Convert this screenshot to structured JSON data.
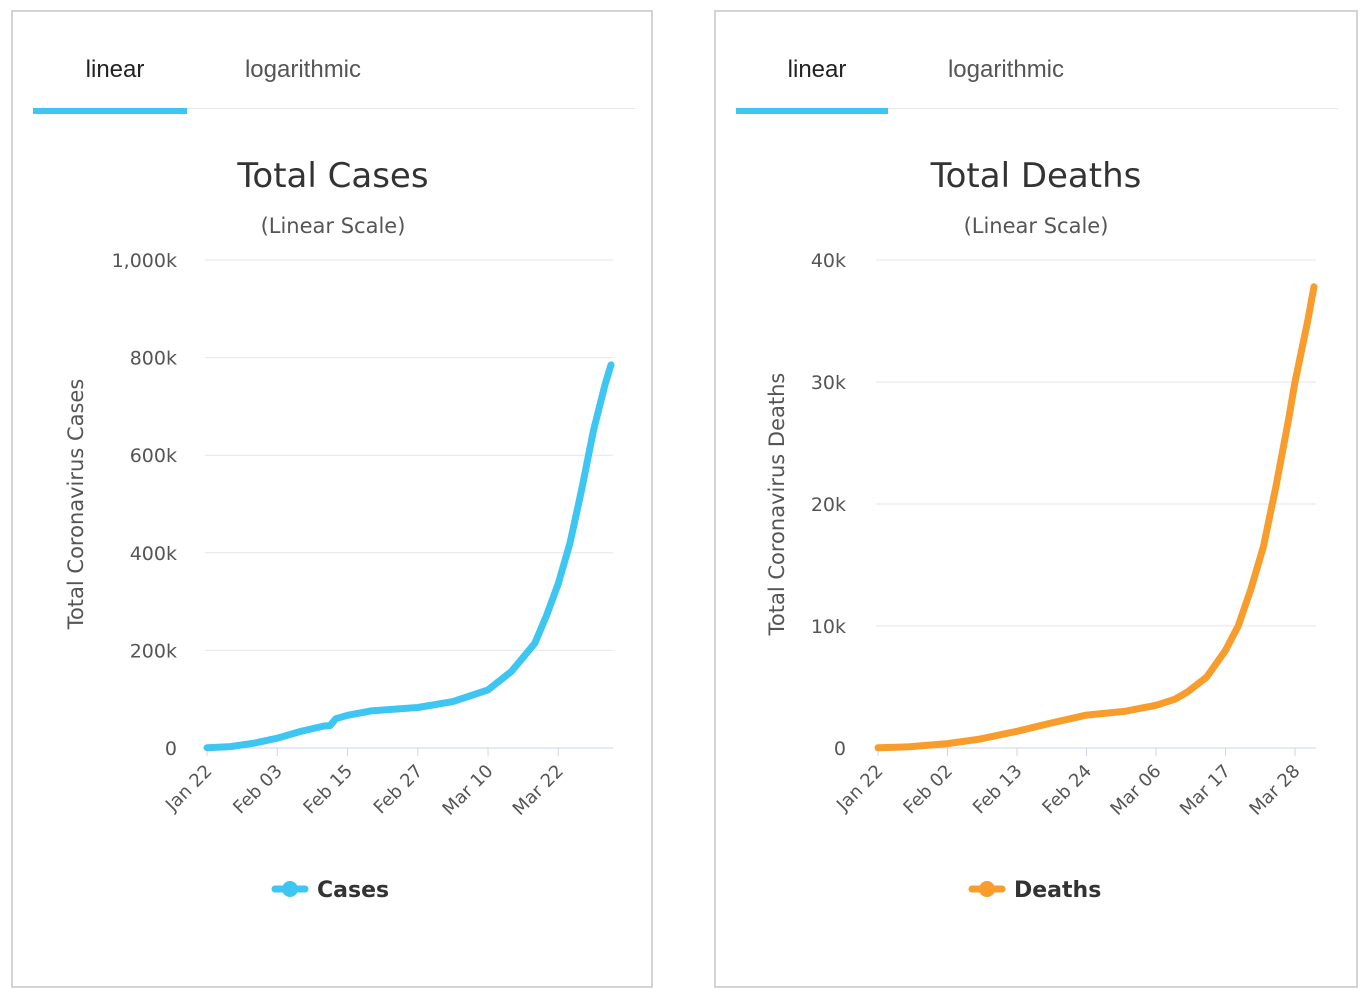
{
  "panels": [
    {
      "tabs": [
        {
          "label": "linear",
          "active": true
        },
        {
          "label": "logarithmic",
          "active": false
        }
      ],
      "accent": "#3ec6f3"
    },
    {
      "tabs": [
        {
          "label": "linear",
          "active": true
        },
        {
          "label": "logarithmic",
          "active": false
        }
      ],
      "accent": "#3ec6f3"
    }
  ],
  "chart_data": [
    {
      "type": "line",
      "title": "Total Cases",
      "subtitle": "(Linear Scale)",
      "xlabel": "",
      "ylabel": "Total Coronavirus Cases",
      "ylim": [
        0,
        1000000
      ],
      "yticks": [
        0,
        200000,
        400000,
        600000,
        800000,
        1000000
      ],
      "ytick_labels": [
        "0",
        "200k",
        "400k",
        "600k",
        "800k",
        "1,000k"
      ],
      "xtick_labels": [
        "Jan 22",
        "Feb 03",
        "Feb 15",
        "Feb 27",
        "Mar 10",
        "Mar 22"
      ],
      "grid": true,
      "legend": "bottom",
      "series": [
        {
          "name": "Cases",
          "color": "#3ec6f3",
          "x": [
            "Jan 22",
            "Jan 26",
            "Jan 30",
            "Feb 03",
            "Feb 07",
            "Feb 11",
            "Feb 12",
            "Feb 13",
            "Feb 15",
            "Feb 19",
            "Feb 27",
            "Mar 04",
            "Mar 10",
            "Mar 14",
            "Mar 18",
            "Mar 20",
            "Mar 22",
            "Mar 24",
            "Mar 26",
            "Mar 28",
            "Mar 30",
            "Mar 31"
          ],
          "values": [
            580,
            2800,
            9800,
            20000,
            34000,
            45000,
            46000,
            60000,
            67000,
            76000,
            83000,
            95000,
            119000,
            157000,
            215000,
            272000,
            337000,
            420000,
            530000,
            650000,
            745000,
            785000
          ]
        }
      ]
    },
    {
      "type": "line",
      "title": "Total Deaths",
      "subtitle": "(Linear Scale)",
      "xlabel": "",
      "ylabel": "Total Coronavirus Deaths",
      "ylim": [
        0,
        40000
      ],
      "yticks": [
        0,
        10000,
        20000,
        30000,
        40000
      ],
      "ytick_labels": [
        "0",
        "10k",
        "20k",
        "30k",
        "40k"
      ],
      "xtick_labels": [
        "Jan 22",
        "Feb 02",
        "Feb 13",
        "Feb 24",
        "Mar 06",
        "Mar 17",
        "Mar 28"
      ],
      "grid": true,
      "legend": "bottom",
      "series": [
        {
          "name": "Deaths",
          "color": "#f89c2b",
          "x": [
            "Jan 22",
            "Jan 27",
            "Feb 02",
            "Feb 07",
            "Feb 13",
            "Feb 18",
            "Feb 24",
            "Mar 01",
            "Mar 06",
            "Mar 09",
            "Mar 11",
            "Mar 14",
            "Mar 17",
            "Mar 19",
            "Mar 21",
            "Mar 23",
            "Mar 25",
            "Mar 27",
            "Mar 28",
            "Mar 30",
            "Mar 31"
          ],
          "values": [
            17,
            100,
            360,
            720,
            1370,
            2000,
            2700,
            3000,
            3500,
            4000,
            4600,
            5800,
            8000,
            10000,
            13000,
            16500,
            21500,
            27000,
            30000,
            35000,
            37800
          ]
        }
      ]
    }
  ]
}
